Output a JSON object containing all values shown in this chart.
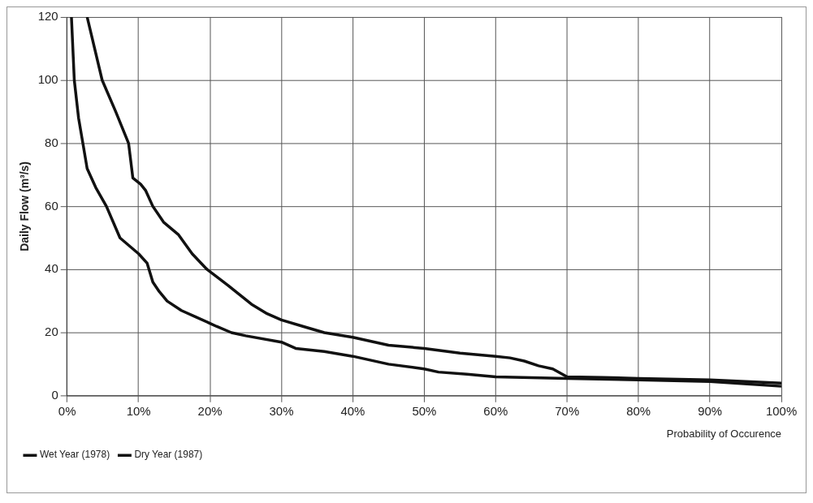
{
  "chart_data": {
    "type": "line",
    "xlabel": "Probability of Occurence",
    "ylabel": "Daily Flow (m³/s)",
    "xlim": [
      0,
      100
    ],
    "xticks": [
      {
        "value": 0,
        "label": "0%"
      },
      {
        "value": 10,
        "label": "10%"
      },
      {
        "value": 20,
        "label": "20%"
      },
      {
        "value": 30,
        "label": "30%"
      },
      {
        "value": 40,
        "label": "40%"
      },
      {
        "value": 50,
        "label": "50%"
      },
      {
        "value": 60,
        "label": "60%"
      },
      {
        "value": 70,
        "label": "70%"
      },
      {
        "value": 80,
        "label": "80%"
      },
      {
        "value": 90,
        "label": "90%"
      },
      {
        "value": 100,
        "label": "100%"
      }
    ],
    "ylim": [
      0,
      120
    ],
    "yticks": [
      0,
      20,
      40,
      60,
      80,
      100,
      120
    ],
    "grid": true,
    "legend": "bottom",
    "marker": "none",
    "line_style": "solid",
    "series": [
      {
        "name": "Wet Year (1978)",
        "color": "#111111",
        "x": [
          2.8,
          4.9,
          6.8,
          8.6,
          9.2,
          10.3,
          11,
          12,
          13.5,
          15.6,
          17.5,
          19.6,
          22.5,
          25.8,
          28,
          30,
          33,
          36,
          40,
          45,
          50,
          55,
          60,
          62,
          64,
          66,
          68,
          70,
          75,
          80,
          90,
          100
        ],
        "values": [
          120,
          100,
          90,
          80,
          69,
          67,
          65,
          60,
          55,
          51,
          45,
          40,
          35,
          29,
          26,
          24,
          22,
          20,
          18.5,
          16,
          15,
          13.5,
          12.5,
          12,
          11,
          9.5,
          8.5,
          6,
          5.8,
          5.5,
          5,
          4
        ]
      },
      {
        "name": "Dry Year (1987)",
        "color": "#111111",
        "x": [
          0.6,
          1,
          1.6,
          2.2,
          2.8,
          4,
          5.5,
          7.4,
          10,
          11.2,
          12,
          12.9,
          14,
          16,
          18,
          20.9,
          23,
          25,
          30,
          32,
          36,
          40,
          45,
          50,
          52,
          56,
          60,
          70,
          80,
          90,
          100
        ],
        "values": [
          120,
          100,
          88,
          80,
          72,
          66,
          60,
          50,
          45,
          42,
          36,
          33,
          30,
          27,
          25,
          22,
          20,
          19,
          17,
          15,
          14,
          12.5,
          10,
          8.5,
          7.5,
          6.8,
          6,
          5.5,
          5,
          4.5,
          3
        ]
      }
    ]
  }
}
